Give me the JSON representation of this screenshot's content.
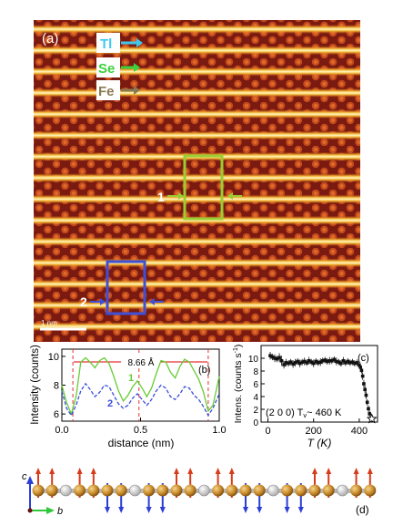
{
  "panel_a": {
    "label": "(a)",
    "legend": [
      {
        "text": "Tl",
        "color": "#3ec8f0"
      },
      {
        "text": "Se",
        "color": "#3cd23c"
      },
      {
        "text": "Fe",
        "color": "#8a7a52"
      }
    ],
    "box1_label": "1",
    "box2_label": "2",
    "scalebar_label": "1 nm",
    "box1_color": "#9acd32",
    "box2_color": "#3e50d8"
  },
  "chart_data": [
    {
      "panel": "(b)",
      "type": "line",
      "xlabel": "distance (nm)",
      "ylabel": "Intensity (counts)",
      "xlim": [
        0,
        1.0
      ],
      "ylim": [
        5.5,
        10.5
      ],
      "xticks": [
        "0.0",
        "0.5",
        "1.0"
      ],
      "yticks": [
        "6",
        "8",
        "10"
      ],
      "annotation": "8.66 Å",
      "dashed_markers_x": [
        0.07,
        0.49,
        0.93
      ],
      "series": [
        {
          "name": "1",
          "color": "#66cc33",
          "style": "solid",
          "x": [
            0.0,
            0.03,
            0.06,
            0.09,
            0.12,
            0.15,
            0.18,
            0.21,
            0.24,
            0.27,
            0.3,
            0.33,
            0.36,
            0.39,
            0.42,
            0.45,
            0.48,
            0.51,
            0.54,
            0.57,
            0.6,
            0.63,
            0.66,
            0.69,
            0.72,
            0.75,
            0.78,
            0.81,
            0.84,
            0.87,
            0.9,
            0.93,
            0.96,
            1.0
          ],
          "values": [
            8.0,
            6.8,
            6.0,
            7.2,
            9.6,
            9.9,
            9.6,
            9.2,
            9.7,
            9.9,
            9.5,
            8.6,
            7.6,
            6.9,
            7.3,
            7.9,
            8.3,
            7.8,
            7.2,
            7.8,
            8.8,
            9.7,
            9.6,
            8.9,
            8.5,
            9.3,
            9.8,
            9.6,
            9.0,
            8.4,
            7.5,
            6.2,
            6.6,
            8.6
          ]
        },
        {
          "name": "2",
          "color": "#3a4ed8",
          "style": "dashed",
          "x": [
            0.0,
            0.03,
            0.06,
            0.09,
            0.12,
            0.15,
            0.18,
            0.21,
            0.24,
            0.27,
            0.3,
            0.33,
            0.36,
            0.39,
            0.42,
            0.45,
            0.48,
            0.51,
            0.54,
            0.57,
            0.6,
            0.63,
            0.66,
            0.69,
            0.72,
            0.75,
            0.78,
            0.81,
            0.84,
            0.87,
            0.9,
            0.93,
            0.96,
            1.0
          ],
          "values": [
            7.6,
            6.4,
            5.9,
            6.6,
            7.6,
            8.1,
            7.7,
            7.2,
            7.5,
            8.0,
            7.9,
            7.3,
            6.7,
            6.4,
            6.6,
            7.1,
            7.4,
            7.0,
            6.6,
            7.0,
            7.6,
            8.0,
            7.8,
            7.2,
            7.0,
            7.4,
            7.9,
            7.8,
            7.3,
            7.0,
            6.5,
            5.9,
            6.4,
            7.4
          ]
        }
      ]
    },
    {
      "panel": "(c)",
      "type": "scatter",
      "xlabel": "T (K)",
      "ylabel": "Intens. (counts s",
      "ylabel_sup": "-1",
      "ylabel_end": ")",
      "xlim": [
        -30,
        480
      ],
      "ylim": [
        0,
        12
      ],
      "xticks": [
        "0",
        "200",
        "400"
      ],
      "yticks": [
        "0",
        "2",
        "4",
        "6",
        "8",
        "10"
      ],
      "annotation_main": "(2 0 0) T",
      "annotation_sub": "v",
      "annotation_end": "~ 460 K",
      "star_point": {
        "x": 455,
        "y": 0.5
      },
      "series": [
        {
          "name": "",
          "color": "#111111",
          "x": [
            10,
            20,
            30,
            40,
            50,
            60,
            70,
            80,
            90,
            100,
            110,
            120,
            130,
            140,
            150,
            160,
            170,
            180,
            190,
            200,
            210,
            220,
            230,
            240,
            250,
            260,
            270,
            280,
            290,
            300,
            310,
            320,
            330,
            340,
            350,
            360,
            370,
            380,
            390,
            400,
            405,
            410,
            415,
            420,
            425,
            430,
            435,
            440,
            445
          ],
          "values": [
            10.4,
            10.2,
            10.0,
            9.9,
            10.1,
            9.6,
            9.0,
            9.3,
            9.2,
            9.4,
            9.1,
            9.3,
            9.5,
            9.2,
            9.4,
            9.5,
            9.3,
            9.6,
            9.4,
            9.2,
            9.5,
            9.3,
            9.4,
            9.6,
            9.7,
            9.5,
            9.6,
            9.6,
            9.8,
            9.5,
            9.4,
            9.2,
            9.6,
            9.3,
            9.5,
            9.3,
            9.4,
            9.2,
            9.3,
            8.9,
            8.6,
            8.1,
            7.2,
            6.0,
            5.1,
            4.2,
            3.1,
            2.1,
            1.3
          ],
          "err": [
            0.6,
            0.5,
            0.6,
            0.5,
            0.7,
            0.8,
            0.6,
            0.6,
            0.5,
            0.5,
            0.6,
            0.6,
            0.5,
            0.6,
            0.5,
            0.6,
            0.5,
            0.6,
            0.5,
            0.6,
            0.5,
            0.5,
            0.6,
            0.5,
            0.5,
            0.5,
            0.6,
            0.5,
            0.5,
            0.6,
            0.5,
            0.5,
            0.6,
            0.5,
            0.5,
            0.5,
            0.5,
            0.5,
            0.5,
            0.5,
            0.5,
            0.5,
            0.6,
            0.6,
            0.6,
            0.6,
            0.5,
            0.5,
            0.5
          ]
        }
      ]
    }
  ],
  "panel_d": {
    "label": "(d)",
    "axis_c": "c",
    "axis_b": "b"
  }
}
